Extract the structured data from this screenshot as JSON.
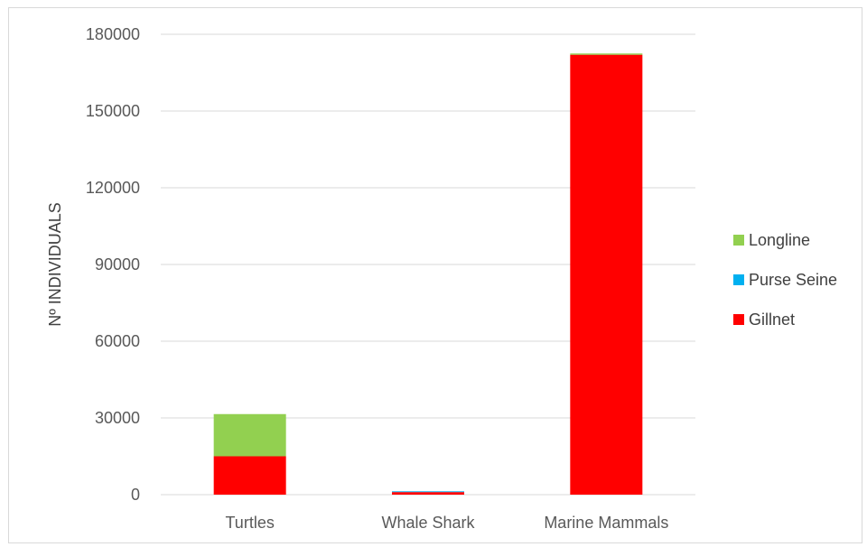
{
  "chart_data": {
    "type": "bar",
    "stacked": true,
    "categories": [
      "Turtles",
      "Whale Shark",
      "Marine Mammals"
    ],
    "series": [
      {
        "name": "Gillnet",
        "color": "#ff0000",
        "values": [
          15000,
          1000,
          172000
        ]
      },
      {
        "name": "Purse Seine",
        "color": "#00b0f0",
        "values": [
          0,
          300,
          0
        ]
      },
      {
        "name": "Longline",
        "color": "#92d050",
        "values": [
          16500,
          0,
          500
        ]
      }
    ],
    "title": "",
    "xlabel": "",
    "ylabel": "Nº INDIVIDUALS",
    "ylim": [
      0,
      180000
    ],
    "yticks": [
      "0",
      "30000",
      "60000",
      "90000",
      "120000",
      "150000",
      "180000"
    ],
    "grid": true,
    "legend_position": "right",
    "legend": [
      "Longline",
      "Purse Seine",
      "Gillnet"
    ]
  }
}
